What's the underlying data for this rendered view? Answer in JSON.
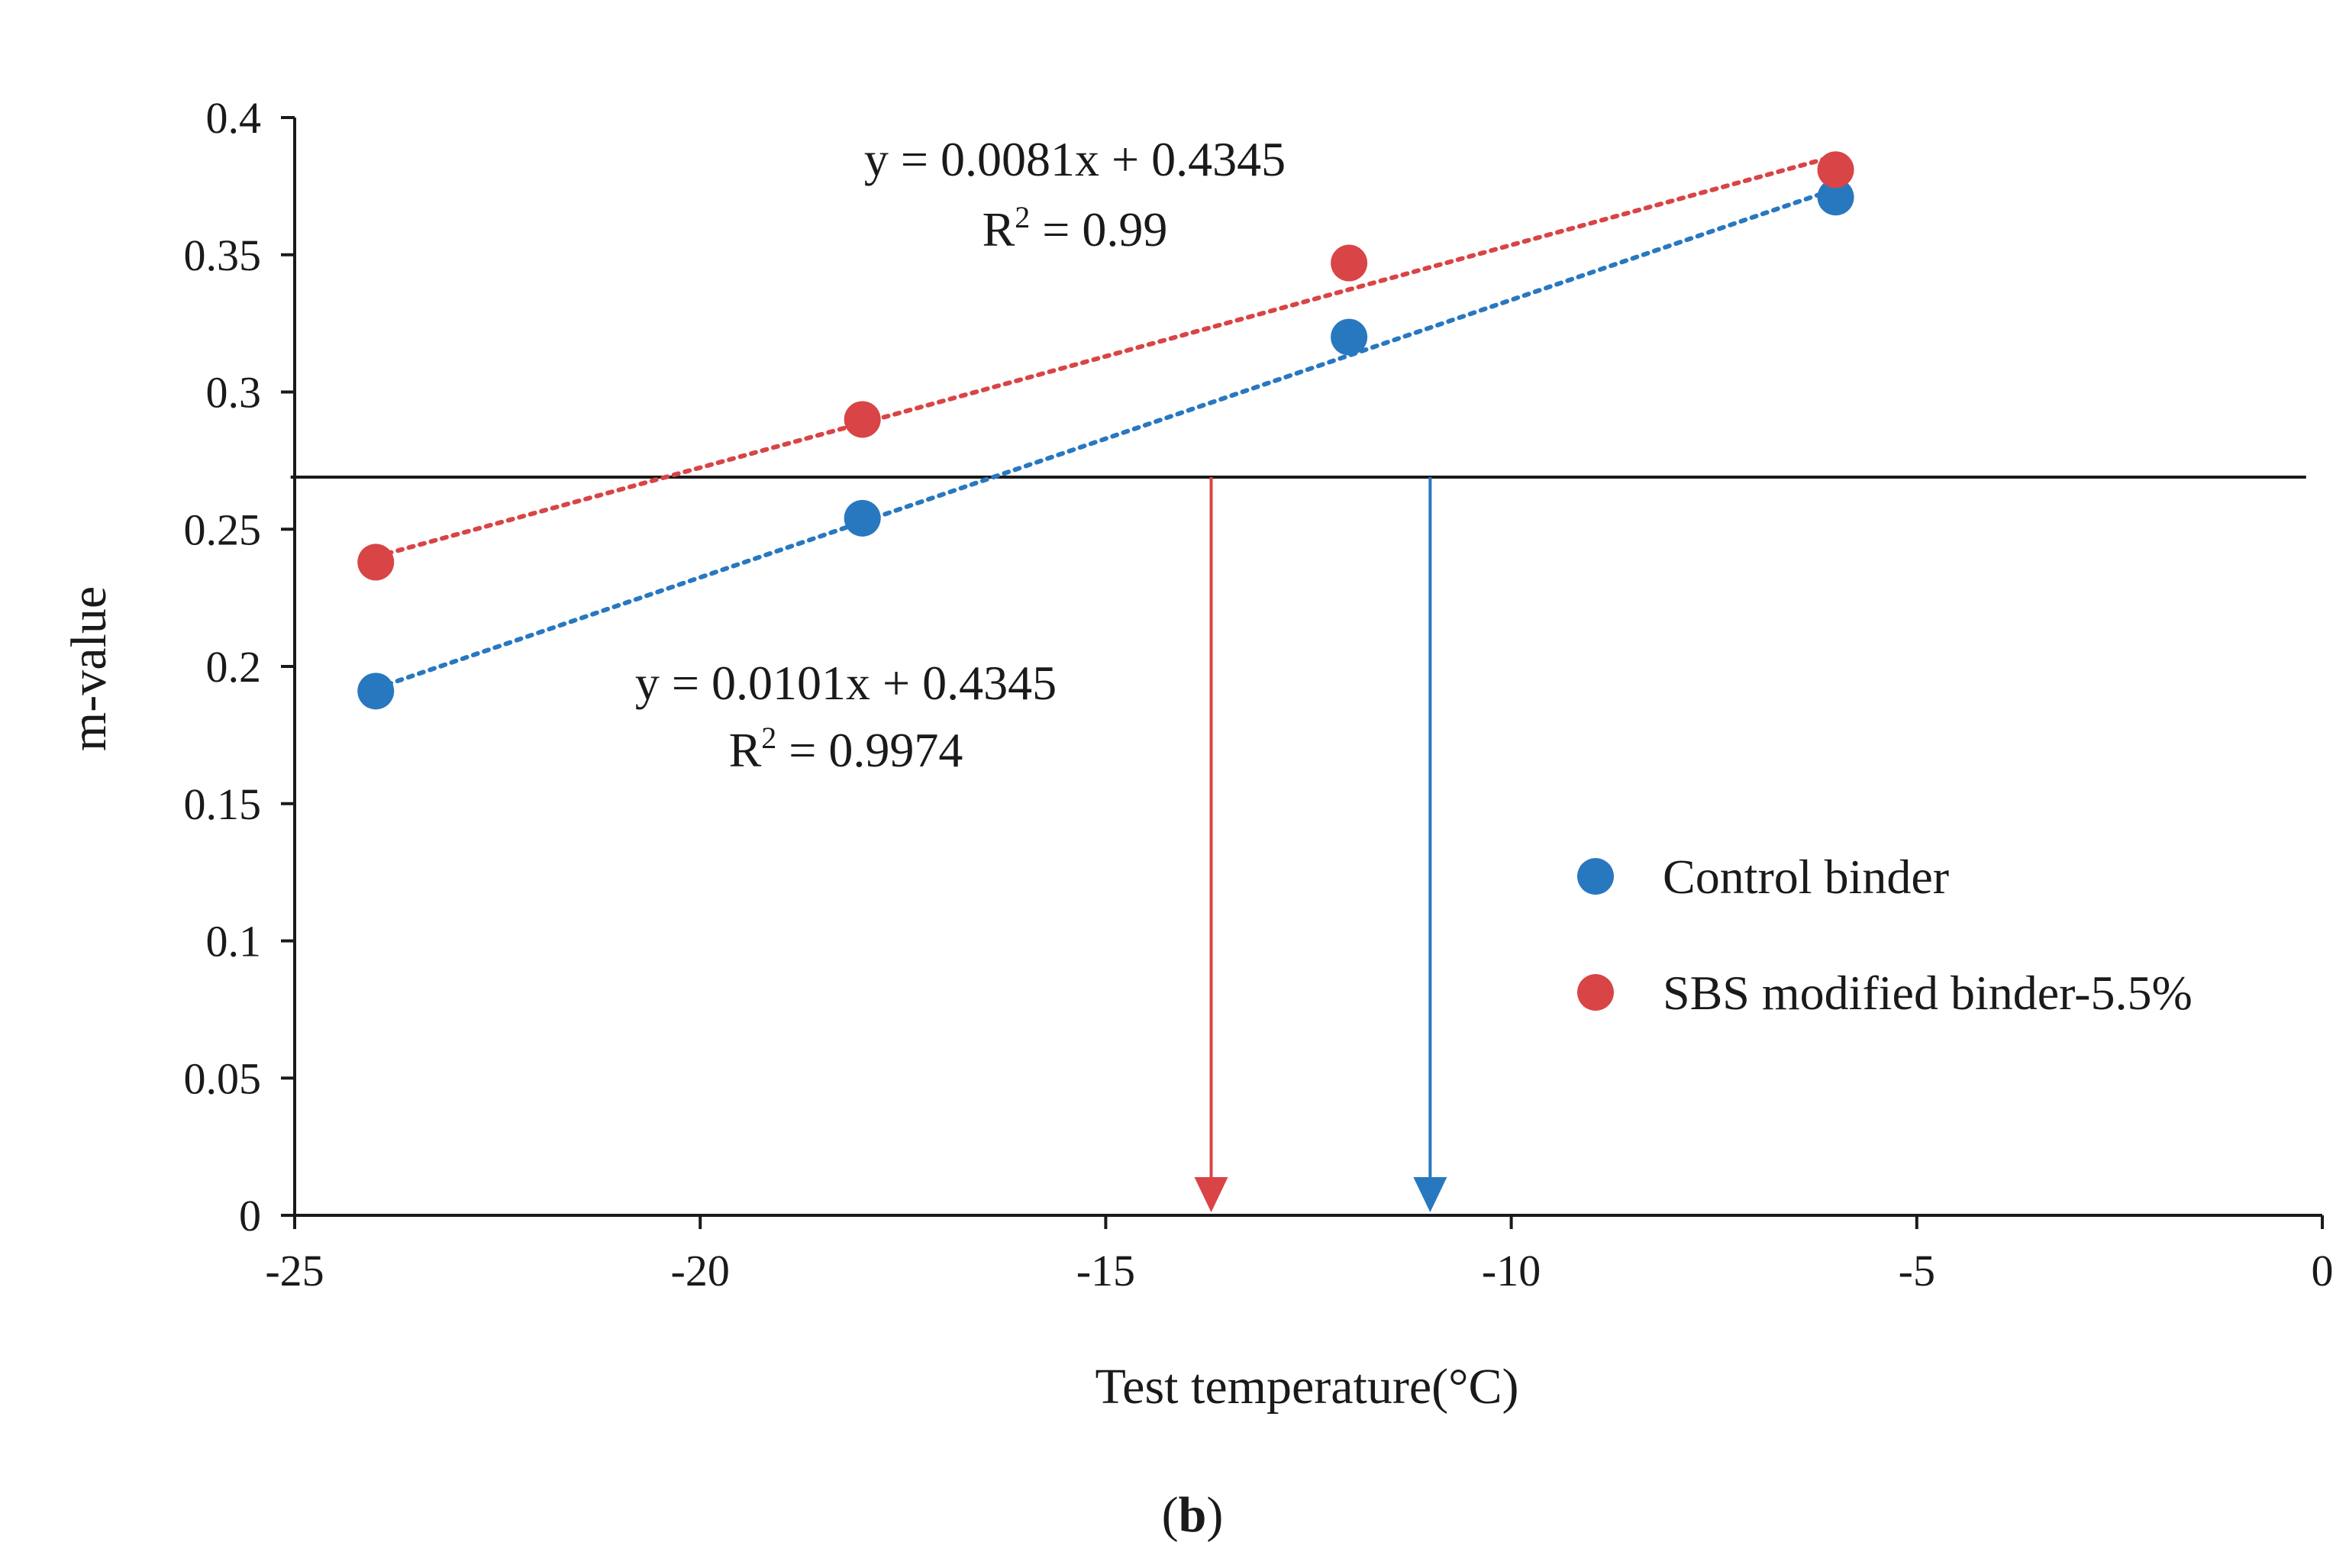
{
  "chart_data": {
    "type": "scatter",
    "title": "",
    "panel_label": "(b)",
    "panel_label_parts": {
      "open": "(",
      "letter": "b",
      "close": ")"
    },
    "xlabel": "Test temperature(°C)",
    "ylabel": "m-value",
    "xlim": [
      -25,
      0
    ],
    "ylim": [
      0,
      0.4
    ],
    "x_ticks": [
      -25,
      -20,
      -15,
      -10,
      -5,
      0
    ],
    "x_tick_labels": [
      "-25",
      "-20",
      "-15",
      "-10",
      "-5",
      "0"
    ],
    "y_ticks": [
      0,
      0.05,
      0.1,
      0.15,
      0.2,
      0.25,
      0.3,
      0.35,
      0.4
    ],
    "y_tick_labels": [
      "0",
      "0.05",
      "0.1",
      "0.15",
      "0.2",
      "0.25",
      "0.3",
      "0.35",
      "0.4"
    ],
    "legend_position": "right-middle",
    "series": [
      {
        "name": "Control binder",
        "color": "#2878c0",
        "x": [
          -24,
          -18,
          -12,
          -6
        ],
        "y": [
          0.191,
          0.254,
          0.32,
          0.371
        ],
        "trendline": {
          "x": [
            -24,
            -6
          ],
          "y": [
            0.192,
            0.374
          ]
        },
        "equation": "y = 0.0101x + 0.4345",
        "r2_prefix": "R",
        "r2_sup": "2",
        "r2_suffix": " = 0.9974",
        "arrow_x": -11.0
      },
      {
        "name": "SBS modified binder-5.5%",
        "color": "#d94446",
        "x": [
          -24,
          -18,
          -12,
          -6
        ],
        "y": [
          0.238,
          0.29,
          0.347,
          0.381
        ],
        "trendline": {
          "x": [
            -24,
            -6
          ],
          "y": [
            0.24,
            0.386
          ]
        },
        "equation": "y = 0.0081x + 0.4345",
        "r2_prefix": "R",
        "r2_sup": "2",
        "r2_suffix": " = 0.99",
        "arrow_x": -13.7
      }
    ],
    "reference_line": {
      "y": 0.269,
      "x_from": -25.05,
      "x_to": -0.2,
      "color": "#1a1a1a"
    },
    "axis_color": "#1a1a1a"
  }
}
